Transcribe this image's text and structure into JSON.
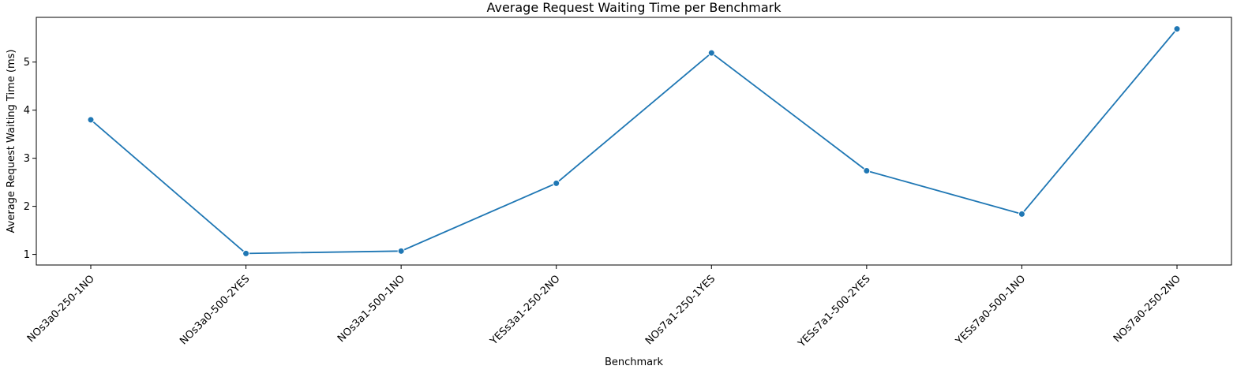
{
  "chart_data": {
    "type": "line",
    "title": "Average Request Waiting Time per Benchmark",
    "xlabel": "Benchmark",
    "ylabel": "Average Request Waiting Time (ms)",
    "categories": [
      "NOs3a0-250-1NO",
      "NOs3a0-500-2YES",
      "NOs3a1-500-1NO",
      "YESs3a1-250-2NO",
      "NOs7a1-250-1YES",
      "YESs7a1-500-2YES",
      "YESs7a0-500-1NO",
      "NOs7a0-250-2NO"
    ],
    "series": [
      {
        "values": [
          3.8,
          1.02,
          1.07,
          2.48,
          5.19,
          2.74,
          1.84,
          5.69
        ]
      }
    ],
    "yticks": [
      1,
      2,
      3,
      4,
      5
    ],
    "ylim": [
      0.78,
      5.93
    ],
    "grid": false,
    "marker": "circle",
    "color": "#1f77b4"
  }
}
